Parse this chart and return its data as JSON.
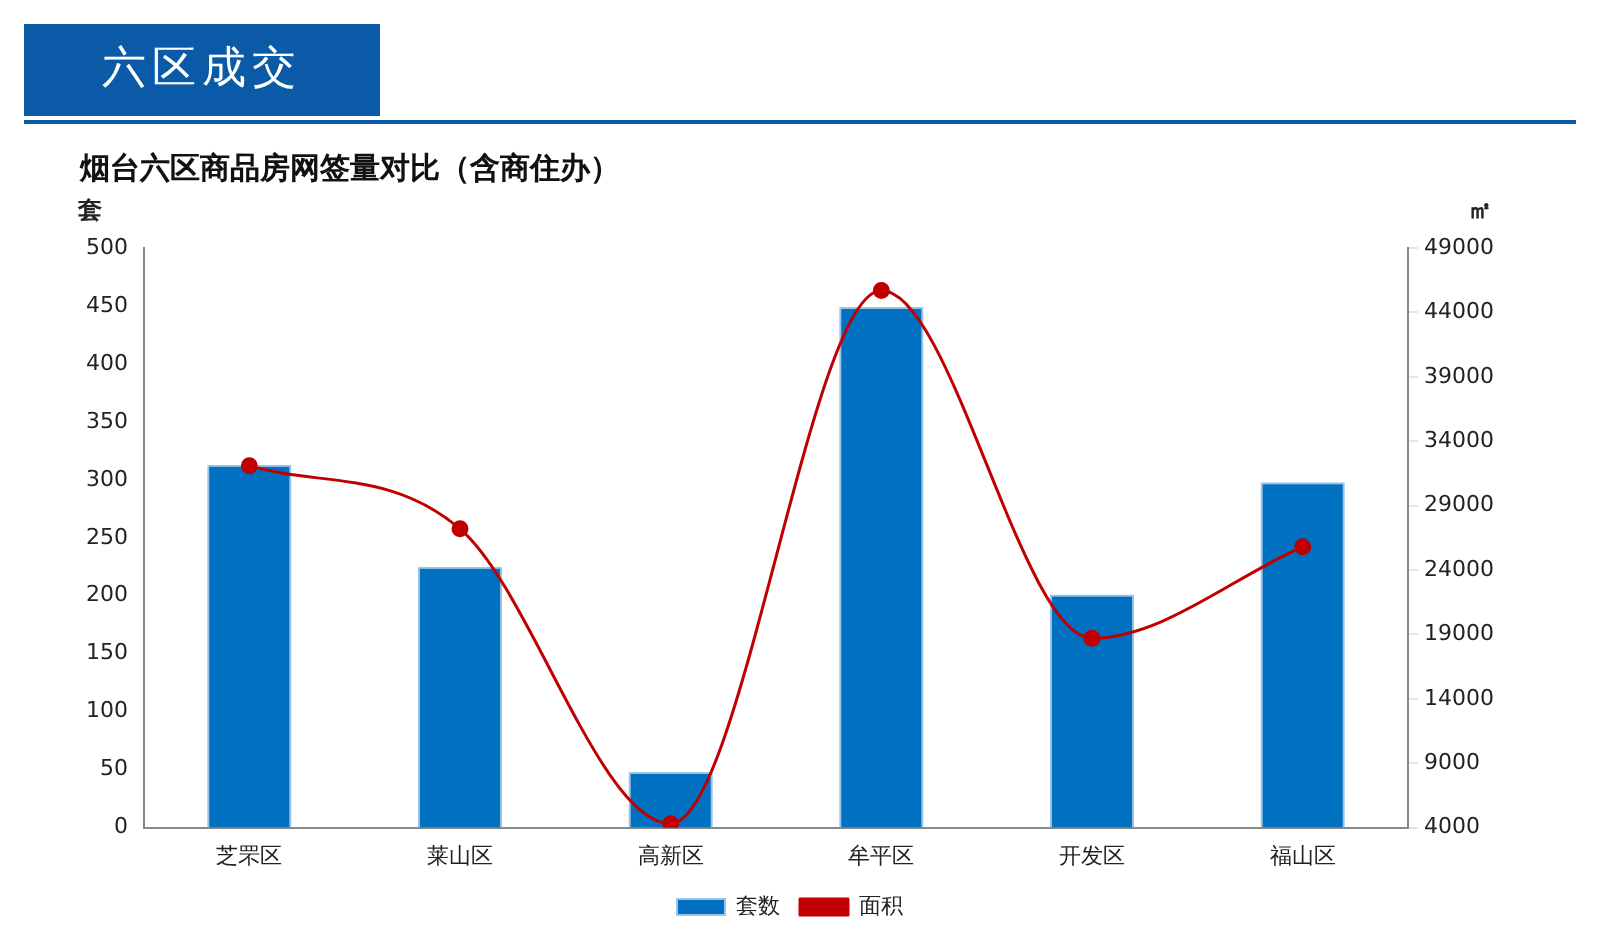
{
  "chart_data": {
    "type": "bar",
    "title": "烟台六区商品房网签量对比（含商住办）",
    "ylabel": "套",
    "y2label": "㎡",
    "annotations": [
      "六区成交"
    ],
    "categories": [
      "芝罘区",
      "莱山区",
      "高新区",
      "牟平区",
      "开发区",
      "福山区"
    ],
    "series": [
      {
        "name": "套数",
        "color": "#0070c0",
        "values": [
          313,
          225,
          48,
          449,
          201,
          298
        ]
      },
      {
        "name": "面积",
        "type": "line",
        "axis": "y2",
        "color": "#c00000",
        "marker": "circle",
        "values": [
          32100,
          27200,
          4300,
          45700,
          18700,
          25800
        ]
      }
    ],
    "ylim": [
      0,
      500
    ],
    "yticks": [
      0,
      50,
      100,
      150,
      200,
      250,
      300,
      350,
      400,
      450,
      500
    ],
    "y2lim": [
      4000,
      49000
    ],
    "y2ticks": [
      4000,
      9000,
      14000,
      19000,
      24000,
      29000,
      34000,
      39000,
      44000,
      49000
    ],
    "grid": false,
    "legend": "bottom"
  }
}
